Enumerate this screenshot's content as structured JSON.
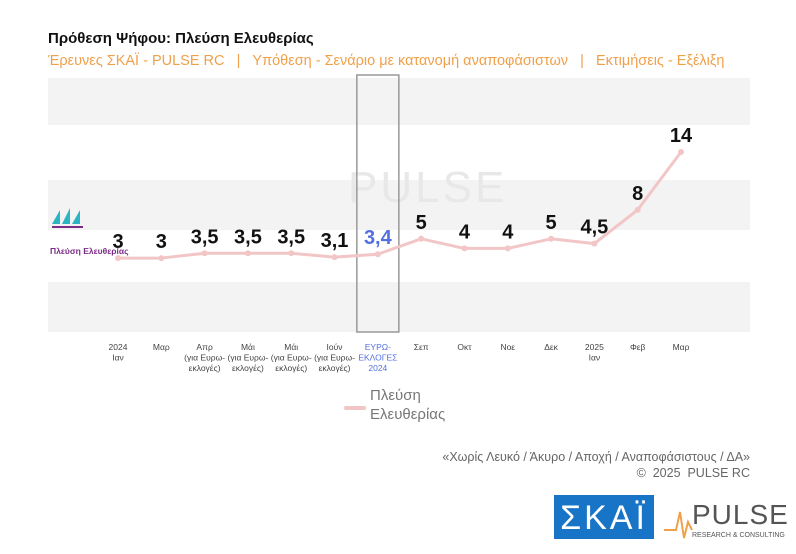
{
  "chart_data": {
    "type": "line",
    "title": "Πρόθεση Ψήφου:  Πλεύση Ελευθερίας",
    "subtitle": "Έρευνες ΣΚΑΪ - PULSE RC   |   Υπόθεση - Σενάριο με κατανομή αναποφάσιστων   |   Εκτιμήσεις - Εξέλιξη",
    "categories": [
      [
        "2024",
        "Ιαν"
      ],
      [
        "Μαρ"
      ],
      [
        "Απρ",
        "(για Ευρω-",
        "εκλογές)"
      ],
      [
        "Μάι",
        "(για Ευρω-",
        "εκλογές)"
      ],
      [
        "Μάι",
        "(για Ευρω-",
        "εκλογές)"
      ],
      [
        "Ιούν",
        "(για Ευρω-",
        "εκλογές)"
      ],
      [
        "ΕΥΡΩ-",
        "ΕΚΛΟΓΕΣ",
        "2024"
      ],
      [
        "Σεπ"
      ],
      [
        "Οκτ"
      ],
      [
        "Νοε"
      ],
      [
        "Δεκ"
      ],
      [
        "2025",
        "Ιαν"
      ],
      [
        "Φεβ"
      ],
      [
        "Μαρ"
      ]
    ],
    "series": [
      {
        "name": "Πλεύση Ελευθερίας",
        "color": "#f2c6c6",
        "values": [
          3,
          3,
          3.5,
          3.5,
          3.5,
          3.1,
          3.4,
          5,
          4,
          4,
          5,
          4.5,
          8,
          14
        ],
        "value_labels": [
          "3",
          "3",
          "3,5",
          "3,5",
          "3,5",
          "3,1",
          "3,4",
          "5",
          "4",
          "4",
          "5",
          "4,5",
          "8",
          "14"
        ]
      }
    ],
    "ylim": [
      0,
      14
    ],
    "highlight": {
      "index": 6,
      "color": "#5470e0"
    },
    "footnote": "«Χωρίς Λευκό / Άκυρο / Αποχή / Αναποφάσιστους / ΔΑ»",
    "copyright": "©  2025  PULSE RC",
    "logos": {
      "party": "Πλεύση Ελευθερίας",
      "broadcaster": "ΣΚΑΪ",
      "pollster": "PULSE",
      "pollster_tagline": "RESEARCH & CONSULTING"
    }
  }
}
